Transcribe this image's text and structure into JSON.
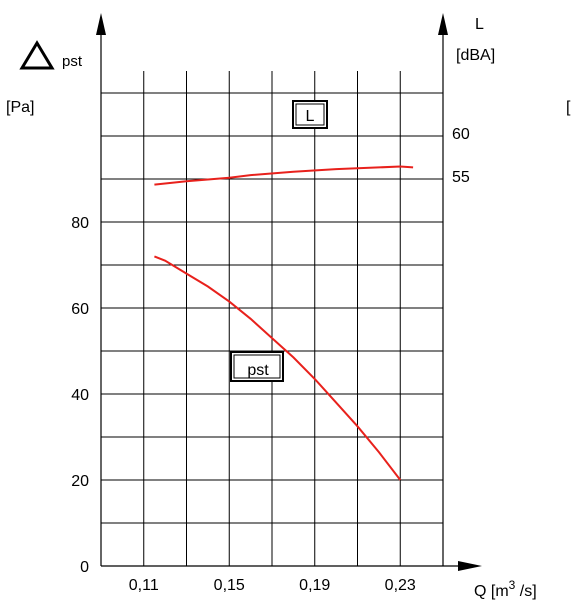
{
  "chart_data": {
    "type": "line",
    "left_axis": {
      "symbol": "Δ",
      "label": "pst",
      "unit": "[Pa]",
      "ticks": [
        "0",
        "20",
        "40",
        "60",
        "80"
      ],
      "ylim": [
        0,
        120
      ]
    },
    "right_axis": {
      "label": "L",
      "unit": "[dBA]",
      "ticks": [
        "55",
        "60"
      ],
      "tick_values": [
        55,
        60
      ]
    },
    "x_axis": {
      "label_prefix": "Q [m",
      "label_sup": "3",
      "label_suffix": " /s]",
      "ticks": [
        "0,11",
        "0,15",
        "0,19",
        "0,23"
      ],
      "tick_values": [
        0.11,
        0.15,
        0.19,
        0.23
      ],
      "xlim": [
        0.09,
        0.25
      ]
    },
    "series": [
      {
        "name": "pst",
        "axis": "left",
        "color": "#e8211c",
        "points": [
          [
            0.115,
            72
          ],
          [
            0.12,
            71
          ],
          [
            0.13,
            68
          ],
          [
            0.14,
            65
          ],
          [
            0.15,
            61.5
          ],
          [
            0.16,
            57.5
          ],
          [
            0.17,
            53
          ],
          [
            0.18,
            48.5
          ],
          [
            0.19,
            43.5
          ],
          [
            0.2,
            38
          ],
          [
            0.21,
            32.5
          ],
          [
            0.22,
            26.5
          ],
          [
            0.23,
            20
          ]
        ]
      },
      {
        "name": "L",
        "axis": "right",
        "color": "#e8211c",
        "points": [
          [
            0.115,
            54.0
          ],
          [
            0.13,
            54.4
          ],
          [
            0.15,
            54.8
          ],
          [
            0.16,
            55.1
          ],
          [
            0.18,
            55.5
          ],
          [
            0.2,
            55.8
          ],
          [
            0.22,
            56.0
          ],
          [
            0.23,
            56.1
          ],
          [
            0.236,
            56.0
          ]
        ]
      }
    ],
    "grid": true,
    "stray_label": "["
  }
}
